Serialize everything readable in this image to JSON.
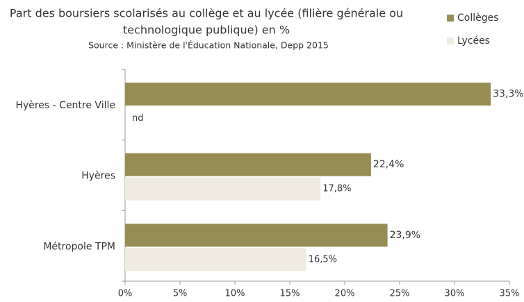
{
  "chart_data": {
    "type": "hbar",
    "title": [
      "Part des boursiers scolarisés au collège et au lycée (filière générale ou",
      "technologique publique) en %"
    ],
    "subtitle": "Source : Ministère de l'Éducation Nationale, Depp 2015",
    "categories": [
      "Hyères - Centre Ville",
      "Hyères",
      "Métropole TPM"
    ],
    "series": [
      {
        "name": "Collèges",
        "color": "#978d54",
        "values": [
          33.3,
          22.4,
          23.9
        ],
        "value_labels": [
          "33,3%",
          "22,4%",
          "23,9%"
        ]
      },
      {
        "name": "Lycées",
        "color": "#efebe0",
        "values": [
          null,
          17.8,
          16.5
        ],
        "value_labels": [
          "nd",
          "17,8%",
          "16,5%"
        ]
      }
    ],
    "xlim": [
      0,
      35
    ],
    "xticks": [
      {
        "value": 0,
        "label": "0%"
      },
      {
        "value": 5,
        "label": "5%"
      },
      {
        "value": 10,
        "label": "10%"
      },
      {
        "value": 15,
        "label": "15%"
      },
      {
        "value": 20,
        "label": "20%"
      },
      {
        "value": 25,
        "label": "25%"
      },
      {
        "value": 30,
        "label": "30%"
      },
      {
        "value": 35,
        "label": "35%"
      }
    ],
    "legend": "top-right"
  }
}
